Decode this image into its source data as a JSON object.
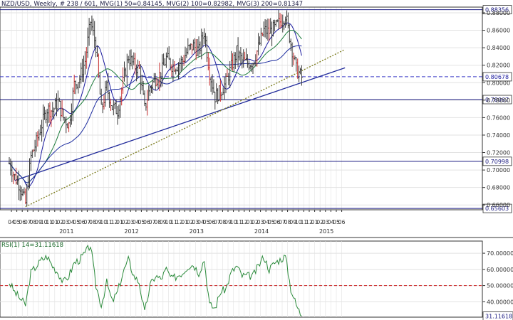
{
  "header": {
    "symbol": "NZD/USD",
    "sep1": ",",
    "timeframe": "Weekly",
    "sep2": ",",
    "bar_counter": "# 238 / 601",
    "sep3": ",",
    "ma1": "MVG(1) 50=0.84145",
    "sep4": ",",
    "ma2": "MVG(2) 100=0.82982",
    "sep5": ",",
    "ma3": "MVG(3) 200=0.81347"
  },
  "rsi_header": "RSI(1) 14=31.11618",
  "colors": {
    "price_bar": "#3a3a3a",
    "up_bar": "#cc3333",
    "ma50": "#1a1a9e",
    "ma100": "#1a7a3a",
    "ma200": "#1a2a9e",
    "trend_solid": "#202a9a",
    "trend_dotted": "#7a7a1a",
    "hline": "#1a1a80",
    "dashed_line": "#3a3ac8",
    "rsi": "#2a8a3a",
    "rsi_mid": "#cc2222",
    "axis": "#303030",
    "grid": "#e2e2e2"
  },
  "chart_data": [
    {
      "type": "line",
      "subtype": "weekly price bars (OHLC)",
      "symbol": "NZD/USD",
      "x_tick_labels": [
        "04",
        "05",
        "06",
        "07",
        "08",
        "09",
        "10",
        "11",
        "01",
        "02",
        "03",
        "04",
        "05",
        "06",
        "07",
        "08",
        "09",
        "10",
        "11",
        "12",
        "01",
        "02",
        "03",
        "04",
        "05",
        "06",
        "07",
        "08",
        "09",
        "10",
        "11",
        "12",
        "01",
        "02",
        "03",
        "04",
        "05",
        "06",
        "07",
        "08",
        "09",
        "10",
        "11",
        "12",
        "01",
        "02",
        "03",
        "04",
        "05",
        "06",
        "07",
        "08",
        "09",
        "10",
        "11",
        "12",
        "01",
        "02",
        "03",
        "04",
        "05",
        "06"
      ],
      "x_year_labels": [
        "2011",
        "2012",
        "2013",
        "2014",
        "2015"
      ],
      "y_tick_labels": [
        "0.66000",
        "0.68000",
        "0.70000",
        "0.72000",
        "0.74000",
        "0.76000",
        "0.78000",
        "0.80000",
        "0.82000",
        "0.84000",
        "0.86000",
        "0.88000"
      ],
      "ylim": [
        0.6545,
        0.8865
      ],
      "grid": true,
      "horizontal_levels": [
        {
          "value": 0.88356,
          "label": "0.88356",
          "style": "solid"
        },
        {
          "value": 0.78067,
          "label": "0.78067",
          "style": "solid"
        },
        {
          "value": 0.70998,
          "label": "0.70998",
          "style": "solid"
        },
        {
          "value": 0.65603,
          "label": "0.65603",
          "style": "solid"
        },
        {
          "value": 0.80678,
          "label": "0.80678",
          "style": "dashed",
          "current": true
        }
      ],
      "trendlines": [
        {
          "name": "blue trendline",
          "from": [
            "2010-05",
            0.688
          ],
          "to": [
            "2015-06",
            0.817
          ]
        },
        {
          "name": "dotted trendline",
          "from": [
            "2010-07",
            0.658
          ],
          "to": [
            "2015-06",
            0.838
          ]
        }
      ],
      "series": [
        {
          "name": "MVG(1) 50",
          "last": 0.84145
        },
        {
          "name": "MVG(2) 100",
          "last": 0.82982
        },
        {
          "name": "MVG(3) 200",
          "last": 0.81347
        }
      ],
      "price_path": [
        [
          "2010-04",
          0.708
        ],
        [
          "2010-05",
          0.692
        ],
        [
          "2010-06",
          0.682
        ],
        [
          "2010-07",
          0.662
        ],
        [
          "2010-08",
          0.715
        ],
        [
          "2010-09",
          0.732
        ],
        [
          "2010-10",
          0.752
        ],
        [
          "2010-11",
          0.77
        ],
        [
          "2010-12",
          0.768
        ],
        [
          "2011-01",
          0.778
        ],
        [
          "2011-02",
          0.76
        ],
        [
          "2011-03",
          0.752
        ],
        [
          "2011-04",
          0.798
        ],
        [
          "2011-05",
          0.805
        ],
        [
          "2011-06",
          0.825
        ],
        [
          "2011-07",
          0.87
        ],
        [
          "2011-08",
          0.842
        ],
        [
          "2011-09",
          0.768
        ],
        [
          "2011-10",
          0.795
        ],
        [
          "2011-11",
          0.772
        ],
        [
          "2011-12",
          0.768
        ],
        [
          "2012-01",
          0.8
        ],
        [
          "2012-02",
          0.83
        ],
        [
          "2012-03",
          0.82
        ],
        [
          "2012-04",
          0.815
        ],
        [
          "2012-05",
          0.77
        ],
        [
          "2012-06",
          0.795
        ],
        [
          "2012-07",
          0.805
        ],
        [
          "2012-08",
          0.81
        ],
        [
          "2012-09",
          0.828
        ],
        [
          "2012-10",
          0.82
        ],
        [
          "2012-11",
          0.82
        ],
        [
          "2012-12",
          0.825
        ],
        [
          "2013-01",
          0.838
        ],
        [
          "2013-02",
          0.842
        ],
        [
          "2013-03",
          0.836
        ],
        [
          "2013-04",
          0.858
        ],
        [
          "2013-05",
          0.812
        ],
        [
          "2013-06",
          0.784
        ],
        [
          "2013-07",
          0.79
        ],
        [
          "2013-08",
          0.8
        ],
        [
          "2013-09",
          0.818
        ],
        [
          "2013-10",
          0.835
        ],
        [
          "2013-11",
          0.825
        ],
        [
          "2013-12",
          0.822
        ],
        [
          "2014-01",
          0.824
        ],
        [
          "2014-02",
          0.84
        ],
        [
          "2014-03",
          0.86
        ],
        [
          "2014-04",
          0.858
        ],
        [
          "2014-05",
          0.862
        ],
        [
          "2014-06",
          0.87
        ],
        [
          "2014-07",
          0.878
        ],
        [
          "2014-08",
          0.845
        ],
        [
          "2014-09",
          0.815
        ],
        [
          "2014-10",
          0.806
        ]
      ]
    },
    {
      "type": "line",
      "name": "RSI(1) 14",
      "last": 31.11618,
      "ylim": [
        30.5,
        77.5
      ],
      "y_tick_labels": [
        "40.00000",
        "50.00000",
        "60.00000",
        "70.00000"
      ],
      "midline": 50,
      "rsi_path": [
        [
          "2010-04",
          52
        ],
        [
          "2010-05",
          46
        ],
        [
          "2010-06",
          42
        ],
        [
          "2010-07",
          38
        ],
        [
          "2010-08",
          58
        ],
        [
          "2010-09",
          62
        ],
        [
          "2010-10",
          66
        ],
        [
          "2010-11",
          68
        ],
        [
          "2010-12",
          62
        ],
        [
          "2011-01",
          58
        ],
        [
          "2011-02",
          52
        ],
        [
          "2011-03",
          56
        ],
        [
          "2011-04",
          64
        ],
        [
          "2011-05",
          66
        ],
        [
          "2011-06",
          70
        ],
        [
          "2011-07",
          75
        ],
        [
          "2011-08",
          50
        ],
        [
          "2011-09",
          38
        ],
        [
          "2011-10",
          52
        ],
        [
          "2011-11",
          40
        ],
        [
          "2011-12",
          46
        ],
        [
          "2012-01",
          58
        ],
        [
          "2012-02",
          66
        ],
        [
          "2012-03",
          56
        ],
        [
          "2012-04",
          52
        ],
        [
          "2012-05",
          33
        ],
        [
          "2012-06",
          50
        ],
        [
          "2012-07",
          56
        ],
        [
          "2012-08",
          54
        ],
        [
          "2012-09",
          60
        ],
        [
          "2012-10",
          54
        ],
        [
          "2012-11",
          56
        ],
        [
          "2012-12",
          58
        ],
        [
          "2013-01",
          62
        ],
        [
          "2013-02",
          63
        ],
        [
          "2013-03",
          58
        ],
        [
          "2013-04",
          66
        ],
        [
          "2013-05",
          38
        ],
        [
          "2013-06",
          36
        ],
        [
          "2013-07",
          46
        ],
        [
          "2013-08",
          48
        ],
        [
          "2013-09",
          58
        ],
        [
          "2013-10",
          62
        ],
        [
          "2013-11",
          56
        ],
        [
          "2013-12",
          56
        ],
        [
          "2014-01",
          56
        ],
        [
          "2014-02",
          62
        ],
        [
          "2014-03",
          68
        ],
        [
          "2014-04",
          60
        ],
        [
          "2014-05",
          64
        ],
        [
          "2014-06",
          66
        ],
        [
          "2014-07",
          68
        ],
        [
          "2014-08",
          48
        ],
        [
          "2014-09",
          38
        ],
        [
          "2014-10",
          31.1
        ]
      ]
    }
  ]
}
